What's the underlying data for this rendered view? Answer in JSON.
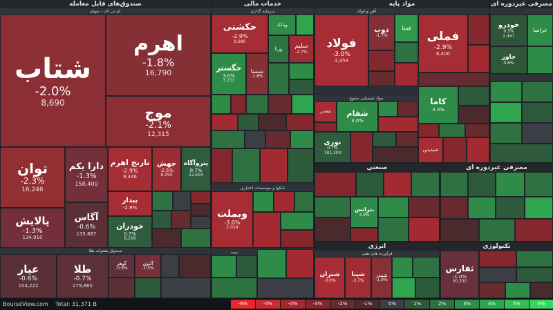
{
  "footer": {
    "brand": "BourseView.com",
    "total_label": "Total: 31,371 B"
  },
  "legend": [
    {
      "label": "-6%",
      "color": "#e8272f"
    },
    {
      "label": "-5%",
      "color": "#c92a30"
    },
    {
      "label": "-4%",
      "color": "#a32a30"
    },
    {
      "label": "-3%",
      "color": "#84282d"
    },
    {
      "label": "-2%",
      "color": "#672a2e"
    },
    {
      "label": "-1%",
      "color": "#4a2a2d"
    },
    {
      "label": "0%",
      "color": "#3b3f45"
    },
    {
      "label": "1%",
      "color": "#2c5a3a"
    },
    {
      "label": "2%",
      "color": "#2f7242"
    },
    {
      "label": "3%",
      "color": "#2f8c48"
    },
    {
      "label": "4%",
      "color": "#30a54f"
    },
    {
      "label": "5%",
      "color": "#32bf56"
    },
    {
      "label": "6%",
      "color": "#35d85e"
    }
  ],
  "sectors": [
    {
      "id": "etf",
      "title": "صندوق‌های قابل معامله",
      "sub": "ای تی اف - سهام"
    },
    {
      "id": "etf2",
      "title": "صندوق پشتوانه طلا"
    },
    {
      "id": "fin",
      "title": "خدمات مالی",
      "sub": "سرمایه گذاری"
    },
    {
      "id": "bank",
      "title": "بانکها و موسسات اعتباری"
    },
    {
      "id": "insure",
      "title": "بیمه"
    },
    {
      "id": "metal",
      "title": "مواد پایه",
      "sub": "آهن و فولاد"
    },
    {
      "id": "chem",
      "title": "مواد شیمیایی متنوع"
    },
    {
      "id": "ind",
      "title": "صنعتی"
    },
    {
      "id": "energy",
      "title": "انرژی",
      "sub": "فراورده های نفتی"
    },
    {
      "id": "cons",
      "title": "مصرفی دوره ای",
      "sub": "خودرو"
    },
    {
      "id": "nondur",
      "title": "مصرفی غیردوره ای"
    },
    {
      "id": "tech",
      "title": "تکنولوژی"
    }
  ],
  "tiles": [
    {
      "name": "شتاب",
      "pct": "-2.0%",
      "price": "8,690",
      "color": "#8c2f35"
    },
    {
      "name": "اهرم",
      "pct": "-1.8%",
      "price": "16,790",
      "color": "#853035"
    },
    {
      "name": "موج",
      "pct": "-2.1%",
      "price": "12,315",
      "color": "#8c2f35"
    },
    {
      "name": "توان",
      "pct": "-2.3%",
      "price": "16,246",
      "color": "#932e33"
    },
    {
      "name": "دارا یکم",
      "pct": "-1.3%",
      "price": "158,400",
      "color": "#73303a"
    },
    {
      "name": "نارنج اهرم",
      "pct": "-2.9%",
      "price": "9,446",
      "color": "#a52d33"
    },
    {
      "name": "جهش",
      "pct": "-2.5%",
      "price": "8,090",
      "color": "#9a2e34"
    },
    {
      "name": "پتروآگاه",
      "pct": "0.7%",
      "price": "12,650",
      "color": "#2f5c3c"
    },
    {
      "name": "پالایش",
      "pct": "-1.3%",
      "price": "134,910",
      "color": "#73303a"
    },
    {
      "name": "آگاس",
      "pct": "-0.6%",
      "price": "135,887",
      "color": "#5a3036"
    },
    {
      "name": "بیدار",
      "pct": "-2.9%",
      "price": "",
      "color": "#a52d33"
    },
    {
      "name": "خودران",
      "pct": "0.7%",
      "price": "8,269",
      "color": "#2f5c3c"
    },
    {
      "name": "عیار",
      "pct": "-0.6%",
      "price": "104,222",
      "color": "#5a3036"
    },
    {
      "name": "طلا",
      "pct": "-0.7%",
      "price": "279,880",
      "color": "#5c3036"
    },
    {
      "name": "گوهر",
      "pct": "-0.9%",
      "price": "",
      "color": "#62303a"
    },
    {
      "name": "آلتون",
      "pct": "-1.3%",
      "price": "",
      "color": "#73303a"
    },
    {
      "name": "حکشتی",
      "pct": "-2.9%",
      "price": "8,880",
      "color": "#a52d33"
    },
    {
      "name": "وبانک",
      "pct": "",
      "price": "",
      "color": "#2f8c48"
    },
    {
      "name": "ورنا",
      "pct": "",
      "price": "",
      "color": "#2f7242"
    },
    {
      "name": "سلیم",
      "pct": "-2.7%",
      "price": "",
      "color": "#9f2d33"
    },
    {
      "name": "خگستر",
      "pct": "3.0%",
      "price": "3,151",
      "color": "#2f8c48"
    },
    {
      "name": "شستا",
      "pct": "-1.8%",
      "price": "",
      "color": "#853035"
    },
    {
      "name": "وبملت",
      "pct": "-3.0%",
      "price": "2,024",
      "color": "#a82c33"
    },
    {
      "name": "فولاد",
      "pct": "-3.0%",
      "price": "4,359",
      "color": "#a82c33"
    },
    {
      "name": "ذوب",
      "pct": "-1.7%",
      "price": "",
      "color": "#823036"
    },
    {
      "name": "فینتا",
      "pct": "",
      "price": "",
      "color": "#2f9a4b"
    },
    {
      "name": "فملی",
      "pct": "-2.9%",
      "price": "6,400",
      "color": "#a52d33"
    },
    {
      "name": "کاما",
      "pct": "3.0%",
      "price": "",
      "color": "#2f8c48"
    },
    {
      "name": "شغدیر",
      "pct": "",
      "price": "",
      "color": "#a82c33"
    },
    {
      "name": "شفام",
      "pct": "3.0%",
      "price": "",
      "color": "#2f8c48"
    },
    {
      "name": "نوری",
      "pct": "0.7%",
      "price": "181,300",
      "color": "#2f5c3c"
    },
    {
      "name": "شپدیس",
      "pct": "",
      "price": "",
      "color": "#a82c33"
    },
    {
      "name": "بترانس",
      "pct": "3.0%",
      "price": "",
      "color": "#2f8c48"
    },
    {
      "name": "شبندر",
      "pct": "-1.9%",
      "price": "",
      "color": "#883036"
    },
    {
      "name": "شپنا",
      "pct": "-2.7%",
      "price": "",
      "color": "#9f2d33"
    },
    {
      "name": "شتران",
      "pct": "-3.0%",
      "price": "",
      "color": "#a82c33"
    },
    {
      "name": "خودرو",
      "pct": "0.5%",
      "price": "2,467",
      "color": "#2e5538"
    },
    {
      "name": "خزامیا",
      "pct": "",
      "price": "",
      "color": "#2f8c48"
    },
    {
      "name": "خاور",
      "pct": "0.6%",
      "price": "",
      "color": "#2e5838"
    },
    {
      "name": "ثفارس",
      "pct": "-1.0%",
      "price": "30,330",
      "color": "#68303a"
    }
  ]
}
